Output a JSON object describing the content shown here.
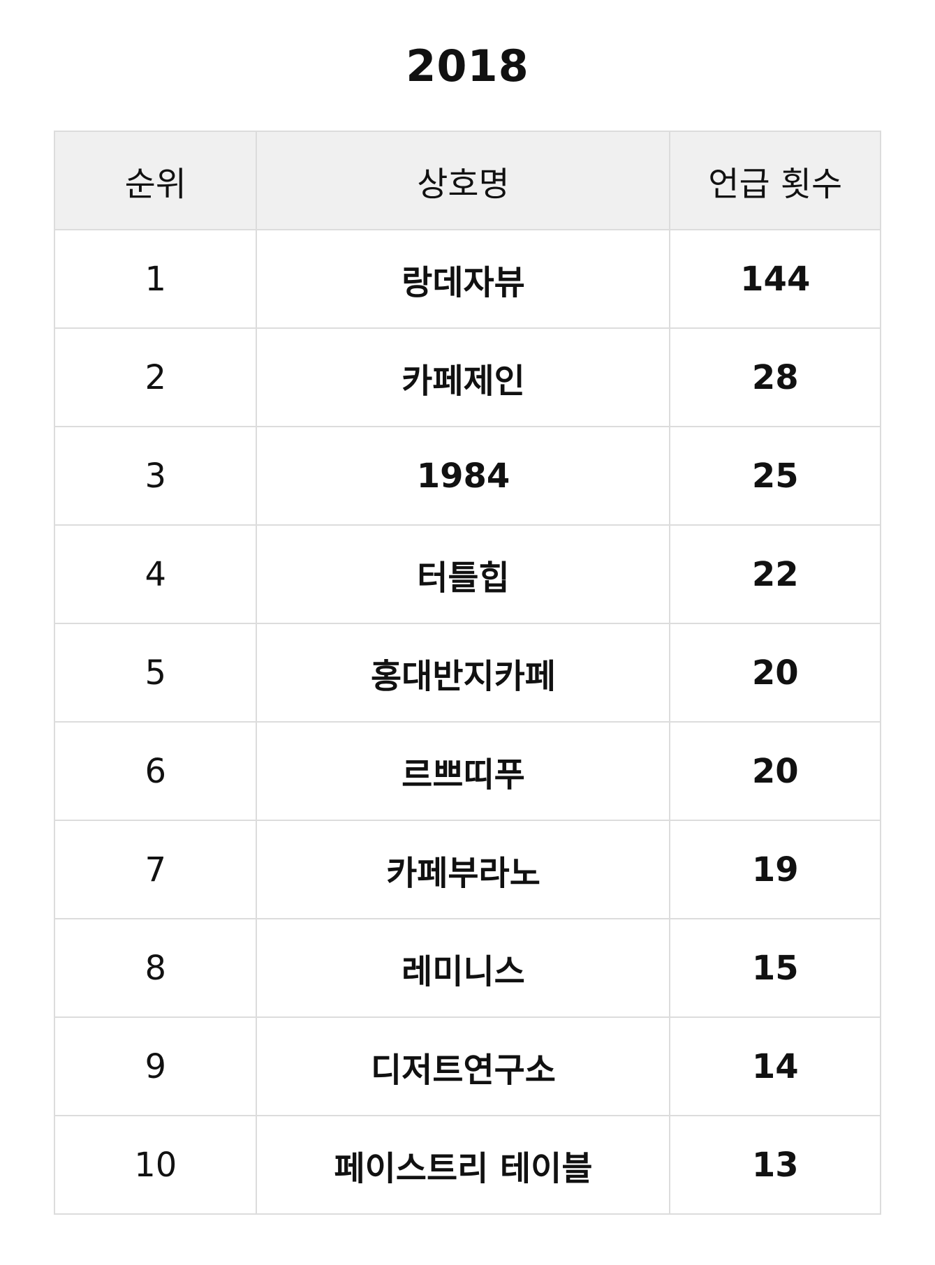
{
  "title": "2018",
  "table": {
    "headers": [
      "순위",
      "상호명",
      "언급 횟수"
    ],
    "rows": [
      {
        "rank": "1",
        "name": "랑데자뷰",
        "count": "144"
      },
      {
        "rank": "2",
        "name": "카페제인",
        "count": "28"
      },
      {
        "rank": "3",
        "name": "1984",
        "count": "25"
      },
      {
        "rank": "4",
        "name": "터틀힙",
        "count": "22"
      },
      {
        "rank": "5",
        "name": "홍대반지카페",
        "count": "20"
      },
      {
        "rank": "6",
        "name": "르쁘띠푸",
        "count": "20"
      },
      {
        "rank": "7",
        "name": "카페부라노",
        "count": "19"
      },
      {
        "rank": "8",
        "name": "레미니스",
        "count": "15"
      },
      {
        "rank": "9",
        "name": "디저트연구소",
        "count": "14"
      },
      {
        "rank": "10",
        "name": "페이스트리 테이블",
        "count": "13"
      }
    ]
  },
  "colors": {
    "header_bg": "#f0f0f0",
    "border": "#dcdcdc",
    "text": "#111111"
  }
}
